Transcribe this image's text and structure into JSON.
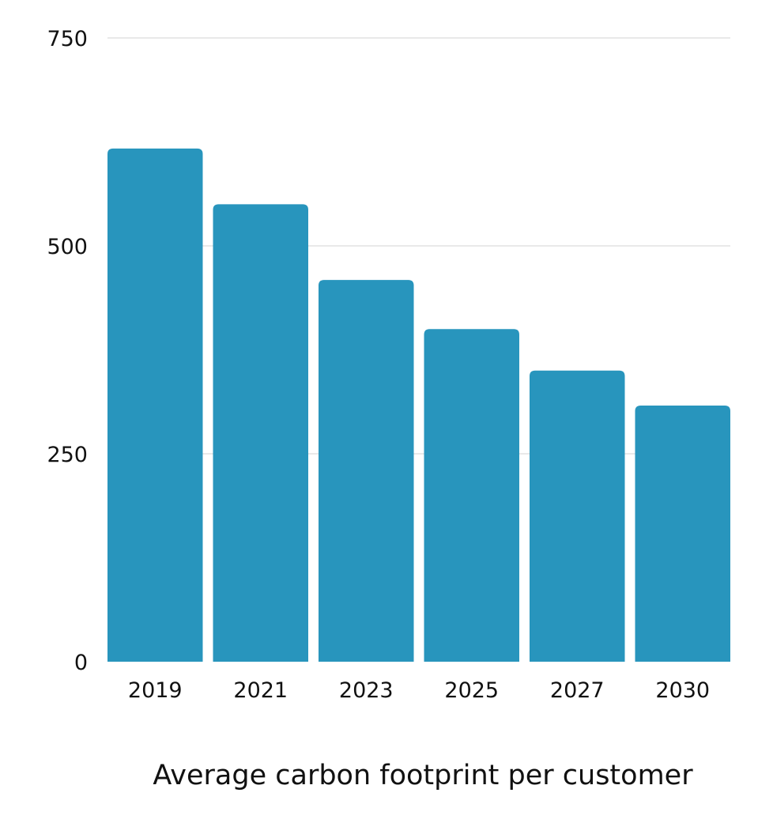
{
  "chart_data": {
    "type": "bar",
    "categories": [
      "2019",
      "2021",
      "2023",
      "2025",
      "2027",
      "2030"
    ],
    "values": [
      617,
      550,
      459,
      400,
      350,
      308
    ],
    "title": "",
    "xlabel": "Average carbon footprint per customer",
    "ylabel": "",
    "ylim": [
      0,
      750
    ],
    "yticks": [
      0,
      250,
      500,
      750
    ],
    "ytick_labels": [
      "0",
      "250",
      "500",
      "750"
    ],
    "grid": true,
    "legend": "none",
    "bar_color": "#2895BD",
    "grid_color": "#D3D3D3"
  }
}
